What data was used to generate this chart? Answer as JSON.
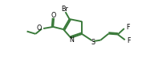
{
  "bg_color": "#ffffff",
  "line_color": "#3a7a3a",
  "text_color": "#000000",
  "bond_lw": 1.4,
  "figsize": [
    1.82,
    0.77
  ],
  "dpi": 100,
  "xlim": [
    0,
    10
  ],
  "ylim": [
    0,
    4.24
  ]
}
